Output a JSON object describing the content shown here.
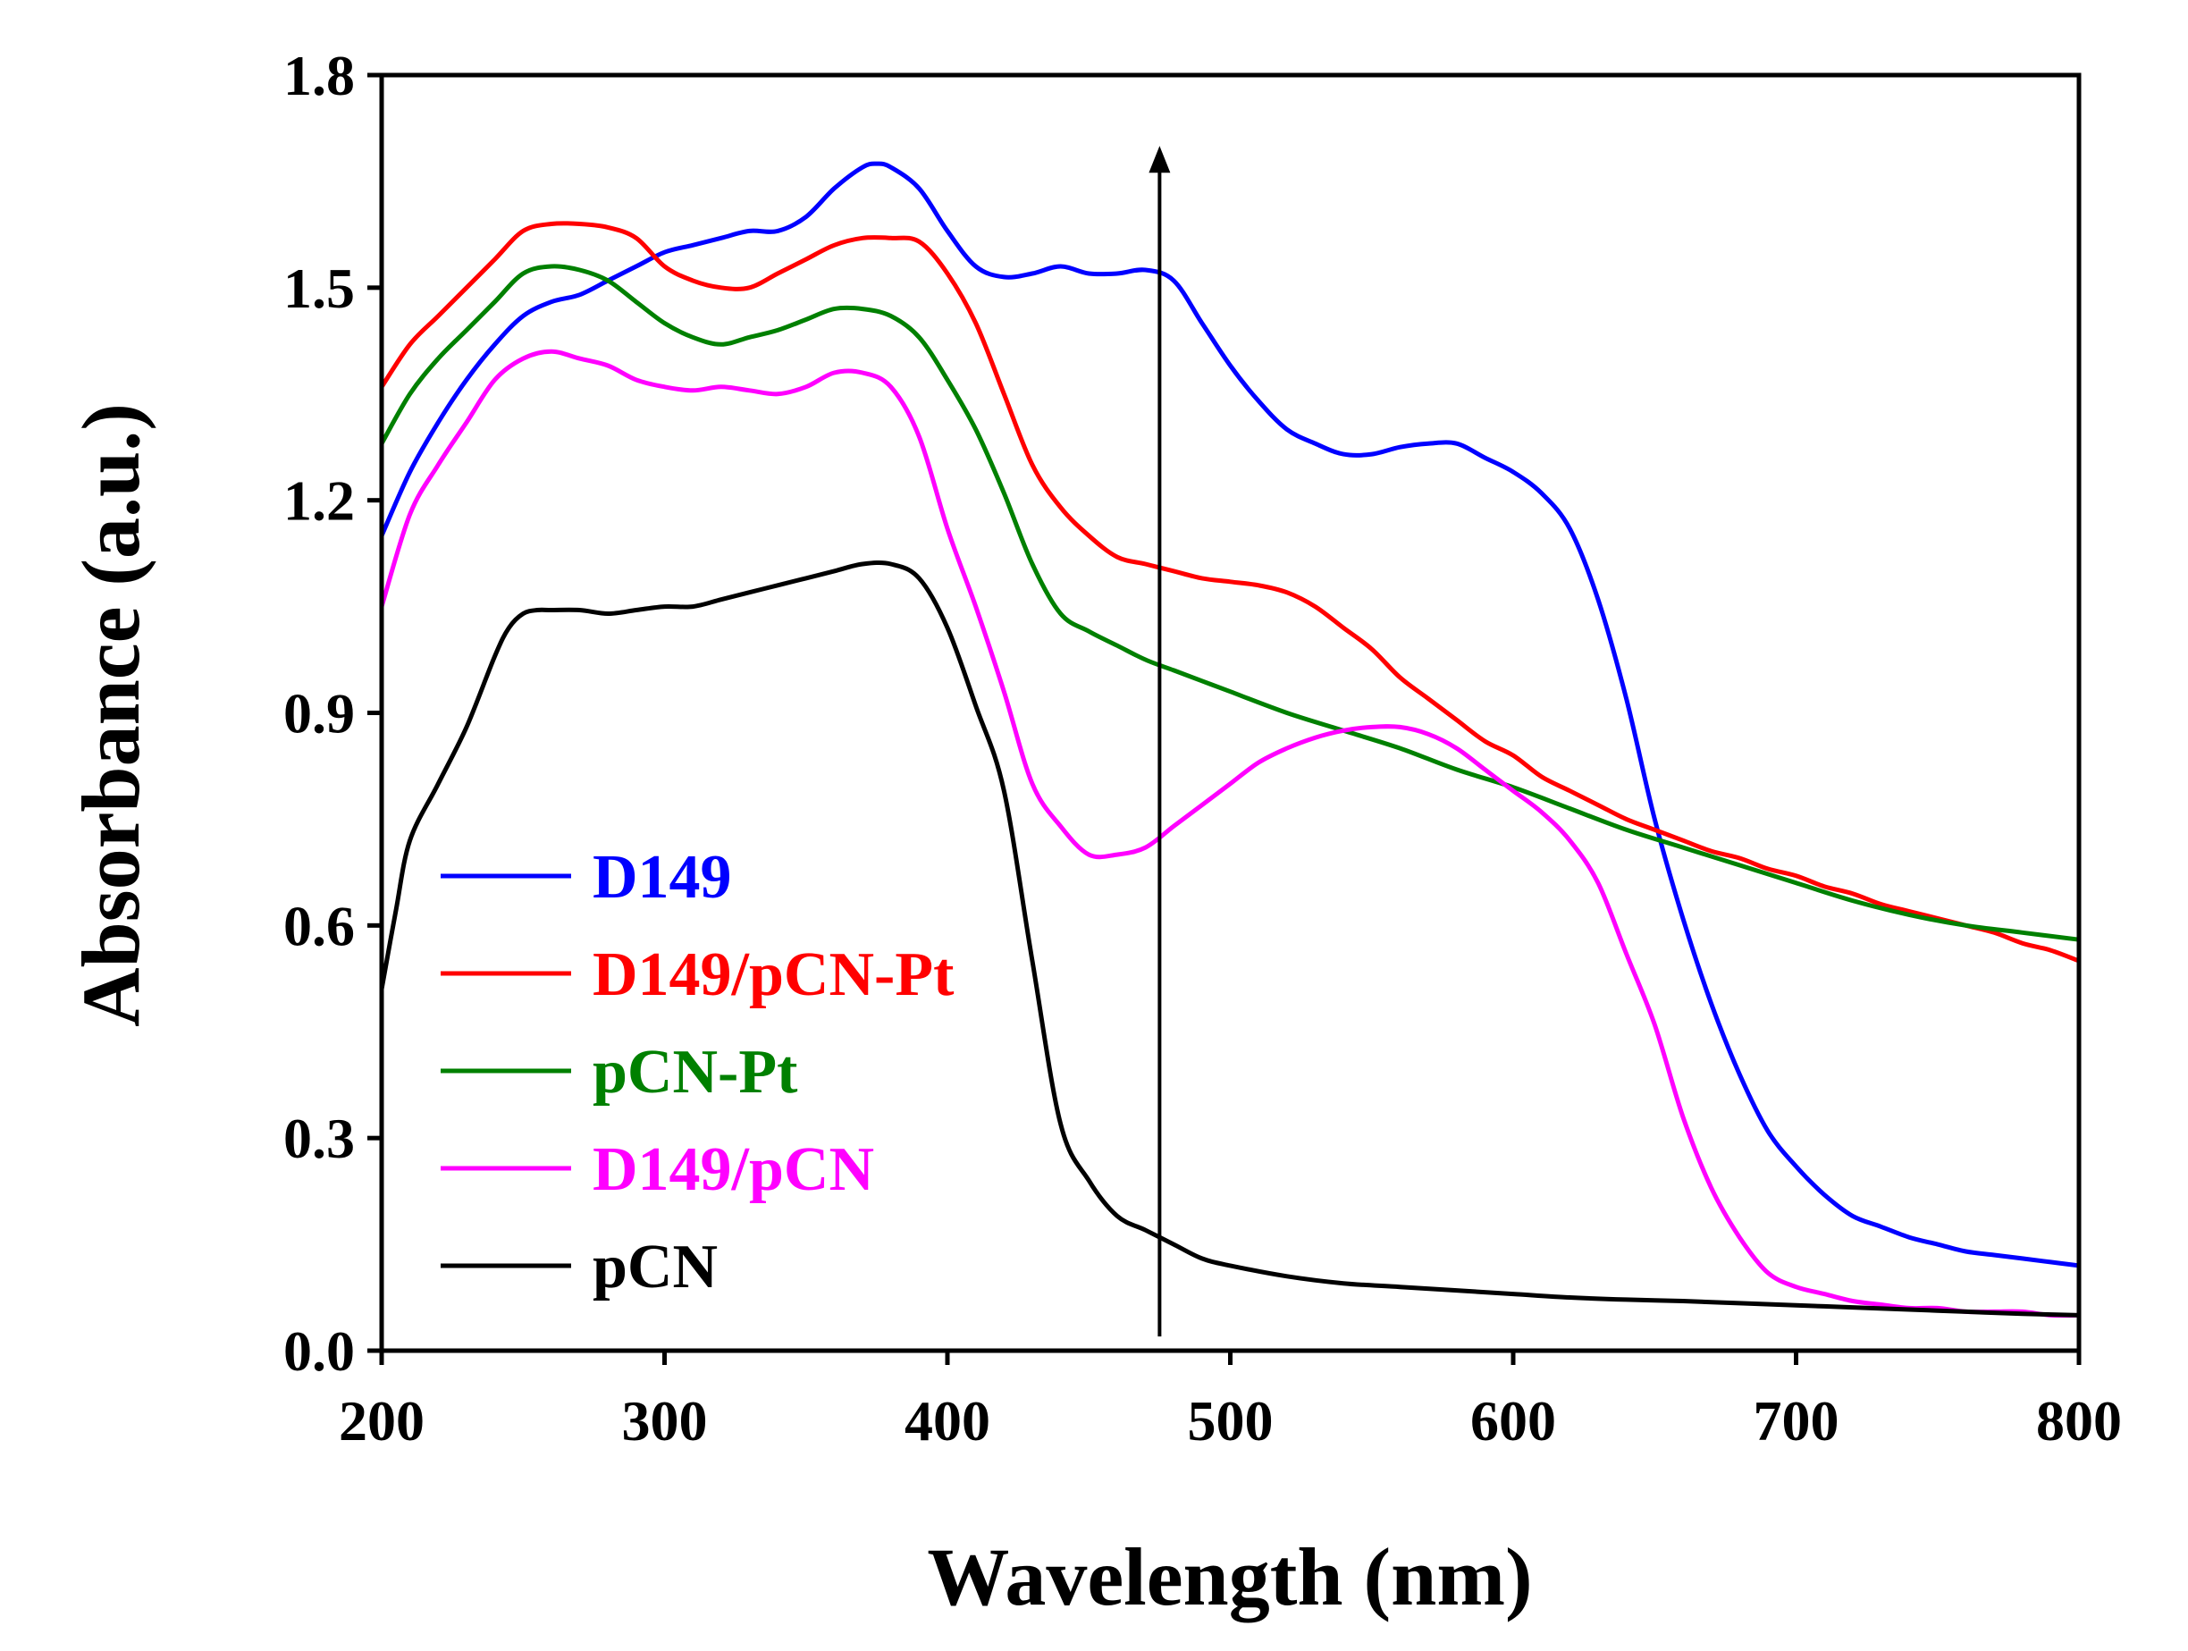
{
  "chart_data": {
    "type": "line",
    "title": "",
    "xlabel": "Wavelength (nm)",
    "ylabel": "Absorbance (a.u.)",
    "xlim": [
      200,
      800
    ],
    "ylim": [
      0.0,
      1.8
    ],
    "xticks": [
      200,
      300,
      400,
      500,
      600,
      700,
      800
    ],
    "xtick_labels": [
      "200",
      "300",
      "400",
      "500",
      "600",
      "700",
      "800"
    ],
    "yticks": [
      0.0,
      0.3,
      0.6,
      0.9,
      1.2,
      1.5,
      1.8
    ],
    "ytick_labels": [
      "0.0",
      "0.3",
      "0.6",
      "0.9",
      "1.2",
      "1.5",
      "1.8"
    ],
    "grid": false,
    "legend_position": "bottom-left",
    "annotation": {
      "type": "arrow",
      "x": 475,
      "y_from": 0.02,
      "y_to": 1.7,
      "color": "#000000"
    },
    "series": [
      {
        "name": "D149",
        "color": "#0000FF",
        "x": [
          200,
          210,
          220,
          230,
          240,
          250,
          260,
          270,
          280,
          290,
          300,
          310,
          320,
          330,
          340,
          350,
          360,
          370,
          375,
          380,
          390,
          400,
          410,
          420,
          430,
          440,
          450,
          460,
          470,
          480,
          490,
          500,
          510,
          520,
          530,
          540,
          550,
          560,
          570,
          580,
          590,
          600,
          610,
          620,
          630,
          640,
          650,
          660,
          670,
          680,
          690,
          700,
          710,
          720,
          730,
          740,
          750,
          760,
          770,
          780,
          790,
          800
        ],
        "y": [
          1.15,
          1.24,
          1.31,
          1.37,
          1.42,
          1.46,
          1.48,
          1.49,
          1.51,
          1.53,
          1.55,
          1.56,
          1.57,
          1.58,
          1.58,
          1.6,
          1.64,
          1.67,
          1.675,
          1.67,
          1.64,
          1.58,
          1.53,
          1.515,
          1.52,
          1.53,
          1.52,
          1.52,
          1.525,
          1.51,
          1.45,
          1.39,
          1.34,
          1.3,
          1.28,
          1.265,
          1.265,
          1.275,
          1.28,
          1.28,
          1.26,
          1.24,
          1.21,
          1.16,
          1.06,
          0.92,
          0.75,
          0.61,
          0.49,
          0.39,
          0.31,
          0.26,
          0.22,
          0.19,
          0.175,
          0.16,
          0.15,
          0.14,
          0.135,
          0.13,
          0.125,
          0.12
        ]
      },
      {
        "name": "D149/pCN-Pt",
        "color": "#FF0000",
        "x": [
          200,
          210,
          220,
          230,
          240,
          250,
          260,
          270,
          280,
          290,
          300,
          310,
          320,
          330,
          340,
          350,
          360,
          370,
          380,
          390,
          400,
          410,
          420,
          430,
          440,
          450,
          460,
          470,
          480,
          490,
          500,
          510,
          520,
          530,
          540,
          550,
          560,
          570,
          580,
          590,
          600,
          610,
          620,
          630,
          640,
          650,
          660,
          670,
          680,
          690,
          700,
          710,
          720,
          730,
          740,
          750,
          760,
          770,
          780,
          790,
          800
        ],
        "y": [
          1.36,
          1.42,
          1.46,
          1.5,
          1.54,
          1.58,
          1.59,
          1.59,
          1.585,
          1.57,
          1.53,
          1.51,
          1.5,
          1.5,
          1.52,
          1.54,
          1.56,
          1.57,
          1.57,
          1.565,
          1.52,
          1.45,
          1.35,
          1.25,
          1.19,
          1.15,
          1.12,
          1.11,
          1.1,
          1.09,
          1.085,
          1.08,
          1.07,
          1.05,
          1.02,
          0.99,
          0.95,
          0.92,
          0.89,
          0.86,
          0.84,
          0.81,
          0.79,
          0.77,
          0.75,
          0.735,
          0.72,
          0.705,
          0.695,
          0.68,
          0.67,
          0.655,
          0.645,
          0.63,
          0.62,
          0.61,
          0.6,
          0.59,
          0.575,
          0.565,
          0.55
        ]
      },
      {
        "name": "pCN-Pt",
        "color": "#008000",
        "x": [
          200,
          210,
          220,
          230,
          240,
          250,
          260,
          270,
          280,
          290,
          300,
          310,
          320,
          330,
          340,
          350,
          360,
          370,
          380,
          390,
          400,
          410,
          420,
          430,
          440,
          450,
          460,
          470,
          480,
          490,
          500,
          520,
          540,
          560,
          580,
          600,
          620,
          640,
          660,
          680,
          700,
          720,
          740,
          760,
          780,
          800
        ],
        "y": [
          1.28,
          1.35,
          1.4,
          1.44,
          1.48,
          1.52,
          1.53,
          1.525,
          1.51,
          1.48,
          1.45,
          1.43,
          1.42,
          1.43,
          1.44,
          1.455,
          1.47,
          1.47,
          1.46,
          1.43,
          1.37,
          1.3,
          1.21,
          1.11,
          1.04,
          1.015,
          0.995,
          0.975,
          0.96,
          0.945,
          0.93,
          0.9,
          0.875,
          0.85,
          0.82,
          0.795,
          0.765,
          0.735,
          0.71,
          0.685,
          0.66,
          0.635,
          0.615,
          0.6,
          0.59,
          0.58
        ]
      },
      {
        "name": "D149/pCN",
        "color": "#FF00FF",
        "x": [
          200,
          210,
          220,
          230,
          240,
          250,
          260,
          270,
          280,
          290,
          300,
          310,
          320,
          330,
          340,
          350,
          360,
          370,
          380,
          390,
          400,
          410,
          420,
          430,
          440,
          450,
          460,
          470,
          480,
          490,
          500,
          510,
          520,
          530,
          540,
          550,
          560,
          570,
          580,
          590,
          600,
          610,
          620,
          630,
          640,
          650,
          660,
          670,
          680,
          690,
          700,
          710,
          720,
          730,
          740,
          750,
          760,
          770,
          780,
          790,
          800
        ],
        "y": [
          1.05,
          1.18,
          1.25,
          1.31,
          1.37,
          1.4,
          1.41,
          1.4,
          1.39,
          1.37,
          1.36,
          1.355,
          1.36,
          1.355,
          1.35,
          1.36,
          1.38,
          1.38,
          1.36,
          1.29,
          1.16,
          1.05,
          0.93,
          0.8,
          0.74,
          0.7,
          0.7,
          0.71,
          0.74,
          0.77,
          0.8,
          0.83,
          0.85,
          0.865,
          0.875,
          0.88,
          0.88,
          0.87,
          0.85,
          0.82,
          0.79,
          0.76,
          0.72,
          0.66,
          0.56,
          0.46,
          0.33,
          0.23,
          0.16,
          0.11,
          0.09,
          0.08,
          0.07,
          0.065,
          0.06,
          0.06,
          0.055,
          0.055,
          0.055,
          0.05,
          0.05
        ]
      },
      {
        "name": "pCN",
        "color": "#000000",
        "x": [
          200,
          205,
          210,
          220,
          230,
          240,
          245,
          250,
          255,
          260,
          270,
          280,
          290,
          300,
          310,
          320,
          330,
          340,
          350,
          360,
          370,
          380,
          390,
          400,
          410,
          420,
          430,
          440,
          450,
          460,
          470,
          480,
          490,
          500,
          520,
          540,
          560,
          580,
          600,
          620,
          640,
          660,
          680,
          700,
          720,
          740,
          760,
          780,
          800
        ],
        "y": [
          0.51,
          0.62,
          0.72,
          0.8,
          0.88,
          0.98,
          1.02,
          1.04,
          1.045,
          1.045,
          1.045,
          1.04,
          1.045,
          1.05,
          1.05,
          1.06,
          1.07,
          1.08,
          1.09,
          1.1,
          1.11,
          1.11,
          1.09,
          1.02,
          0.91,
          0.79,
          0.55,
          0.32,
          0.24,
          0.19,
          0.17,
          0.15,
          0.13,
          0.12,
          0.105,
          0.095,
          0.09,
          0.085,
          0.08,
          0.075,
          0.072,
          0.07,
          0.067,
          0.064,
          0.061,
          0.058,
          0.055,
          0.052,
          0.05
        ]
      }
    ]
  }
}
